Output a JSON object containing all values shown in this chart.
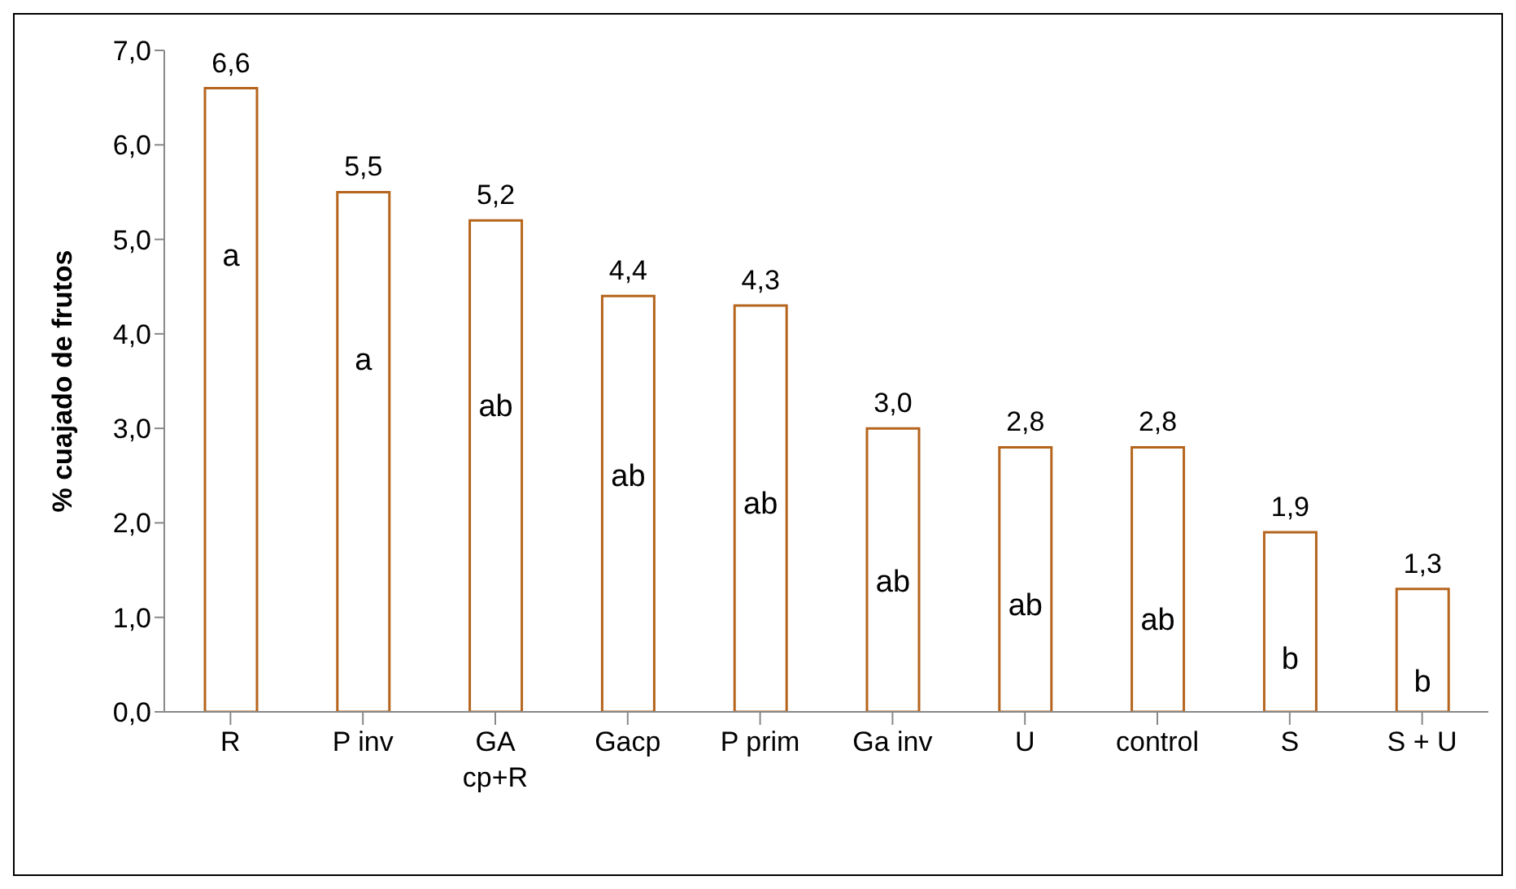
{
  "chart_data": {
    "type": "bar",
    "ylabel": "% cuajado de frutos",
    "categories": [
      "R",
      "P inv",
      "GA\ncp+R",
      "Gacp",
      "P prim",
      "Ga inv",
      "U",
      "control",
      "S",
      "S + U"
    ],
    "values": [
      6.6,
      5.5,
      5.2,
      4.4,
      4.3,
      3.0,
      2.8,
      2.8,
      1.9,
      1.3
    ],
    "value_labels": [
      "6,6",
      "5,5",
      "5,2",
      "4,4",
      "4,3",
      "3,0",
      "2,8",
      "2,8",
      "1,9",
      "1,3"
    ],
    "color": "#b5651d",
    "ylim": [
      0,
      7
    ],
    "yticks": [
      {
        "value": 0,
        "label": "0,0"
      },
      {
        "value": 1,
        "label": "1,0"
      },
      {
        "value": 2,
        "label": "2,0"
      },
      {
        "value": 3,
        "label": "3,0"
      },
      {
        "value": 4,
        "label": "4,0"
      },
      {
        "value": 5,
        "label": "5,0"
      },
      {
        "value": 6,
        "label": "6,0"
      },
      {
        "value": 7,
        "label": "7,0"
      }
    ],
    "grid": false,
    "legend": false,
    "annotations": [
      "a",
      "a",
      "ab",
      "ab",
      "ab",
      "ab",
      "ab",
      "ab",
      "b",
      "b"
    ]
  }
}
